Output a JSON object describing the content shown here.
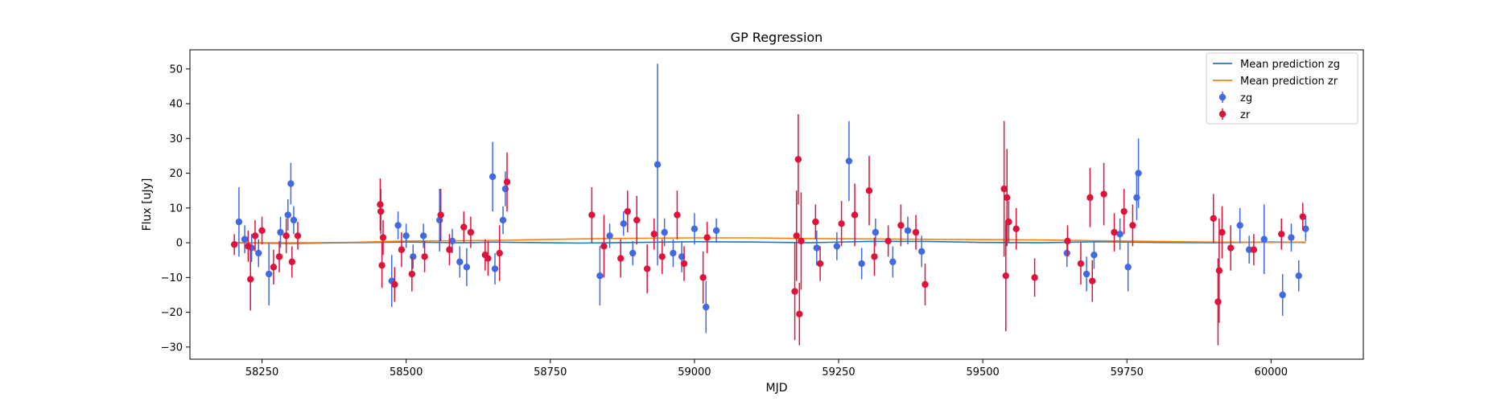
{
  "chart_data": {
    "type": "scatter",
    "title": "GP Regression",
    "xlabel": "MJD",
    "ylabel": "Flux [uJy]",
    "xlim": [
      58125,
      60160
    ],
    "ylim": [
      -33.5,
      55.5
    ],
    "xticks": [
      58250,
      58500,
      58750,
      59000,
      59250,
      59500,
      59750,
      60000
    ],
    "yticks": [
      -30,
      -20,
      -10,
      0,
      10,
      20,
      30,
      40,
      50
    ],
    "grid": false,
    "legend_position": "top-right",
    "legend": [
      "Mean prediction zg",
      "Mean prediction zr",
      "zg",
      "zr"
    ],
    "series": [
      {
        "name": "Mean prediction zg",
        "kind": "line",
        "color": "#1f77b4",
        "x": [
          58200,
          58300,
          58400,
          58500,
          58600,
          58650,
          58700,
          58800,
          58900,
          59000,
          59100,
          59200,
          59300,
          59400,
          59500,
          59600,
          59700,
          59800,
          59900,
          60000,
          60060
        ],
        "y": [
          0.0,
          -0.2,
          0.0,
          0.2,
          0.0,
          0.2,
          0.1,
          -0.1,
          0.1,
          0.3,
          0.2,
          0.0,
          0.4,
          0.4,
          0.1,
          0.0,
          0.3,
          0.1,
          0.0,
          0.2,
          0.1
        ]
      },
      {
        "name": "Mean prediction zr",
        "kind": "line",
        "color": "#ff7f0e",
        "x": [
          58200,
          58300,
          58400,
          58500,
          58600,
          58700,
          58800,
          58900,
          59000,
          59100,
          59200,
          59300,
          59400,
          59500,
          59600,
          59700,
          59800,
          59900,
          60000,
          60060
        ],
        "y": [
          0.0,
          0.0,
          0.1,
          0.5,
          0.6,
          0.8,
          1.1,
          1.3,
          1.4,
          1.4,
          1.2,
          1.1,
          1.0,
          0.9,
          0.8,
          0.6,
          0.4,
          0.2,
          0.1,
          0.2
        ]
      },
      {
        "name": "zg",
        "kind": "errorbar",
        "color": "#4169e1",
        "x": [
          58210,
          58220,
          58232,
          58244,
          58262,
          58282,
          58295,
          58300,
          58305,
          58475,
          58486,
          58500,
          58512,
          58530,
          58558,
          58580,
          58593,
          58605,
          58650,
          58654,
          58668,
          58672,
          58836,
          58853,
          58877,
          58893,
          58936,
          58948,
          58963,
          58978,
          59000,
          59020,
          59038,
          59212,
          59247,
          59268,
          59290,
          59314,
          59344,
          59370,
          59394,
          59646,
          59680,
          59693,
          59738,
          59752,
          59767,
          59770,
          59946,
          59962,
          59988,
          60020,
          60035,
          60048,
          60060
        ],
        "y": [
          6.0,
          1.0,
          -1.5,
          -3.0,
          -9.0,
          3.0,
          8.0,
          17.0,
          6.5,
          -11.0,
          5.0,
          2.0,
          -4.0,
          2.0,
          6.5,
          0.5,
          -5.5,
          -7.0,
          19.0,
          -7.5,
          6.5,
          15.5,
          -9.5,
          2.0,
          5.5,
          -3.0,
          22.5,
          3.0,
          -3.0,
          -4.0,
          4.0,
          -18.5,
          3.5,
          -1.5,
          -1.0,
          23.5,
          -6.0,
          3.0,
          -5.5,
          3.5,
          -2.5,
          -3.0,
          -9.0,
          -3.5,
          2.5,
          -7.0,
          13.0,
          20.0,
          5.0,
          -2.0,
          1.0,
          -15.0,
          1.5,
          -9.5,
          4.0
        ],
        "err": [
          10.0,
          4.0,
          4.0,
          4.0,
          9.0,
          4.5,
          4.5,
          6.0,
          4.0,
          7.5,
          4.0,
          3.5,
          3.5,
          3.5,
          9.0,
          3.5,
          4.5,
          5.5,
          10.0,
          4.5,
          4.0,
          5.0,
          8.5,
          3.5,
          3.5,
          3.5,
          29.0,
          4.0,
          4.0,
          4.5,
          4.5,
          7.5,
          3.5,
          5.0,
          4.0,
          11.5,
          4.5,
          4.0,
          4.5,
          4.0,
          4.5,
          4.0,
          5.0,
          4.0,
          4.5,
          7.0,
          6.5,
          10.0,
          5.0,
          4.0,
          10.0,
          6.0,
          4.0,
          4.5,
          3.5
        ]
      },
      {
        "name": "zr",
        "kind": "errorbar",
        "color": "#dc143c",
        "x": [
          58202,
          58226,
          58230,
          58238,
          58250,
          58270,
          58280,
          58292,
          58302,
          58312,
          58455,
          58456,
          58458,
          58460,
          58480,
          58492,
          58510,
          58532,
          58560,
          58575,
          58600,
          58612,
          58637,
          58642,
          58662,
          58675,
          58822,
          58843,
          58872,
          58884,
          58900,
          58918,
          58930,
          58944,
          58970,
          58982,
          59015,
          59022,
          59174,
          59177,
          59180,
          59182,
          59185,
          59210,
          59218,
          59255,
          59278,
          59303,
          59312,
          59336,
          59358,
          59384,
          59400,
          59537,
          59540,
          59542,
          59545,
          59558,
          59590,
          59647,
          59670,
          59686,
          59690,
          59710,
          59728,
          59745,
          59760,
          59900,
          59908,
          59910,
          59915,
          59930,
          59970,
          60018,
          60055
        ],
        "y": [
          -0.5,
          -1.0,
          -10.5,
          2.0,
          3.5,
          -7.0,
          -4.0,
          2.0,
          -5.5,
          2.0,
          11.0,
          9.0,
          -6.5,
          1.5,
          -12.0,
          -2.0,
          -9.0,
          -4.0,
          8.0,
          -2.0,
          4.5,
          3.0,
          -3.5,
          -4.5,
          -3.0,
          17.5,
          8.0,
          -1.0,
          -4.5,
          9.0,
          6.5,
          -7.5,
          2.5,
          -4.0,
          8.0,
          -6.0,
          -10.0,
          1.5,
          -14.0,
          2.0,
          24.0,
          -20.5,
          0.5,
          6.0,
          -6.0,
          5.5,
          8.0,
          15.0,
          -4.0,
          0.5,
          5.0,
          3.0,
          -12.0,
          15.5,
          -9.5,
          13.0,
          6.0,
          4.0,
          -10.0,
          0.5,
          -6.0,
          13.0,
          -11.0,
          14.0,
          3.0,
          9.0,
          5.0,
          7.0,
          -17.0,
          -8.0,
          3.0,
          -1.5,
          -2.0,
          2.5,
          7.5
        ],
        "err": [
          3.0,
          4.5,
          9.0,
          4.5,
          4.0,
          5.0,
          4.5,
          5.0,
          4.5,
          4.0,
          7.5,
          6.5,
          6.5,
          5.0,
          5.0,
          5.0,
          5.0,
          4.5,
          7.5,
          4.5,
          4.5,
          4.5,
          4.5,
          5.0,
          8.0,
          8.5,
          8.0,
          9.0,
          5.5,
          6.0,
          7.0,
          7.0,
          4.5,
          5.0,
          7.0,
          5.0,
          7.5,
          4.5,
          14.0,
          13.0,
          13.0,
          9.0,
          14.0,
          5.0,
          5.0,
          6.5,
          9.0,
          10.0,
          5.5,
          4.5,
          6.0,
          5.0,
          6.0,
          19.5,
          16.0,
          14.0,
          6.0,
          6.0,
          5.5,
          4.5,
          6.0,
          8.5,
          6.0,
          9.0,
          5.5,
          6.5,
          6.0,
          7.0,
          12.5,
          15.0,
          7.5,
          6.5,
          4.5,
          4.5,
          4.0
        ]
      }
    ]
  }
}
